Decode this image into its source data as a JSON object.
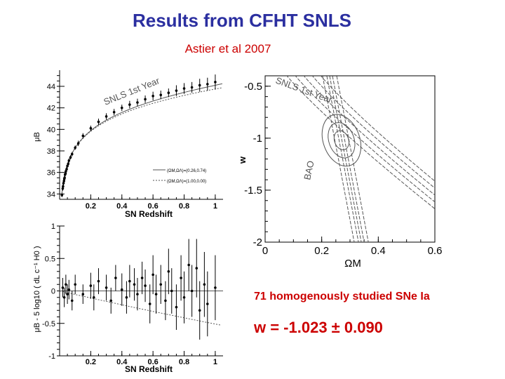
{
  "slide": {
    "title": "Results from CFHT SNLS",
    "subtitle": "Astier et al  2007",
    "note_count": "71 homogenously studied SNe Ia",
    "note_w": "w = -1.023 ± 0.090"
  },
  "colors": {
    "title": "#2b2fa0",
    "accent": "#cc0000",
    "ink": "#000000",
    "curve": "#555555"
  },
  "chart_data": [
    {
      "type": "scatter",
      "xlabel": "SN Redshift",
      "ylabel": "μB",
      "xlim": [
        0,
        1.05
      ],
      "ylim": [
        33.5,
        45.5
      ],
      "xticks": [
        "0.2",
        "0.4",
        "0.6",
        "0.8",
        "1"
      ],
      "yticks": [
        "34",
        "36",
        "38",
        "40",
        "42",
        "44"
      ],
      "annotation": "SNLS 1st Year",
      "legend_entries": [
        "(ΩM,ΩΛ)=(0.26,0.74)",
        "(ΩM,ΩΛ)=(1.00,0.00)"
      ],
      "legend_position": "bottom-right",
      "x": [
        0.015,
        0.02,
        0.022,
        0.025,
        0.028,
        0.03,
        0.032,
        0.035,
        0.038,
        0.04,
        0.045,
        0.05,
        0.055,
        0.06,
        0.07,
        0.08,
        0.1,
        0.12,
        0.15,
        0.2,
        0.25,
        0.3,
        0.35,
        0.4,
        0.45,
        0.5,
        0.55,
        0.6,
        0.65,
        0.7,
        0.75,
        0.8,
        0.85,
        0.9,
        0.95,
        1.0
      ],
      "y": [
        33.9,
        34.5,
        34.7,
        35.0,
        35.2,
        35.4,
        35.5,
        35.8,
        35.9,
        36.1,
        36.3,
        36.6,
        36.8,
        37.1,
        37.4,
        37.7,
        38.3,
        38.7,
        39.4,
        40.1,
        40.7,
        41.2,
        41.6,
        42.0,
        42.3,
        42.5,
        42.8,
        43.1,
        43.2,
        43.4,
        43.6,
        43.8,
        43.9,
        44.1,
        44.2,
        44.4
      ],
      "yerr": [
        0.2,
        0.2,
        0.2,
        0.2,
        0.2,
        0.2,
        0.2,
        0.2,
        0.2,
        0.2,
        0.2,
        0.2,
        0.2,
        0.2,
        0.2,
        0.2,
        0.2,
        0.25,
        0.25,
        0.25,
        0.3,
        0.3,
        0.3,
        0.3,
        0.35,
        0.35,
        0.35,
        0.4,
        0.4,
        0.4,
        0.5,
        0.5,
        0.5,
        0.6,
        0.6,
        0.7
      ]
    },
    {
      "type": "scatter",
      "xlabel": "SN Redshift",
      "ylabel": "μB - 5 log10 ( dL c⁻¹ H0 )",
      "xlim": [
        0,
        1.05
      ],
      "ylim": [
        -1,
        1
      ],
      "xticks": [
        "0.2",
        "0.4",
        "0.6",
        "0.8",
        "1"
      ],
      "yticks": [
        "-1",
        "-0.5",
        "0",
        "0.5",
        "1"
      ],
      "x": [
        0.02,
        0.03,
        0.04,
        0.05,
        0.06,
        0.08,
        0.1,
        0.15,
        0.2,
        0.22,
        0.25,
        0.3,
        0.33,
        0.36,
        0.4,
        0.43,
        0.45,
        0.48,
        0.5,
        0.53,
        0.55,
        0.58,
        0.6,
        0.62,
        0.65,
        0.68,
        0.7,
        0.72,
        0.75,
        0.78,
        0.8,
        0.83,
        0.85,
        0.88,
        0.9,
        0.93,
        0.95,
        1.0
      ],
      "y": [
        0.05,
        -0.1,
        0.1,
        -0.05,
        0.02,
        -0.15,
        0.1,
        -0.05,
        0.08,
        -0.1,
        0.15,
        0.05,
        -0.15,
        0.2,
        0.02,
        -0.1,
        0.15,
        0.1,
        -0.05,
        0.2,
        0.08,
        -0.2,
        0.25,
        -0.05,
        0.1,
        -0.15,
        0.3,
        0.0,
        -0.25,
        0.2,
        -0.1,
        0.4,
        0.0,
        0.35,
        -0.3,
        0.1,
        -0.2,
        0.05
      ],
      "yerr": [
        0.15,
        0.15,
        0.15,
        0.15,
        0.15,
        0.15,
        0.15,
        0.15,
        0.2,
        0.2,
        0.2,
        0.2,
        0.2,
        0.2,
        0.25,
        0.25,
        0.25,
        0.25,
        0.25,
        0.25,
        0.25,
        0.3,
        0.3,
        0.3,
        0.3,
        0.3,
        0.35,
        0.35,
        0.35,
        0.35,
        0.4,
        0.4,
        0.4,
        0.45,
        0.45,
        0.5,
        0.5,
        0.5
      ]
    },
    {
      "type": "contour",
      "xlabel": "ΩM",
      "ylabel": "w",
      "xlim": [
        0,
        0.6
      ],
      "ylim": [
        -2,
        -0.4
      ],
      "xticks": [
        "0",
        "0.2",
        "0.4",
        "0.6"
      ],
      "yticks": [
        "-0.5",
        "-1",
        "-1.5",
        "-2"
      ],
      "annotations": [
        "SNLS 1st Year",
        "BAO"
      ],
      "best_fit": {
        "omega_m": 0.27,
        "w": -1.02
      }
    }
  ]
}
